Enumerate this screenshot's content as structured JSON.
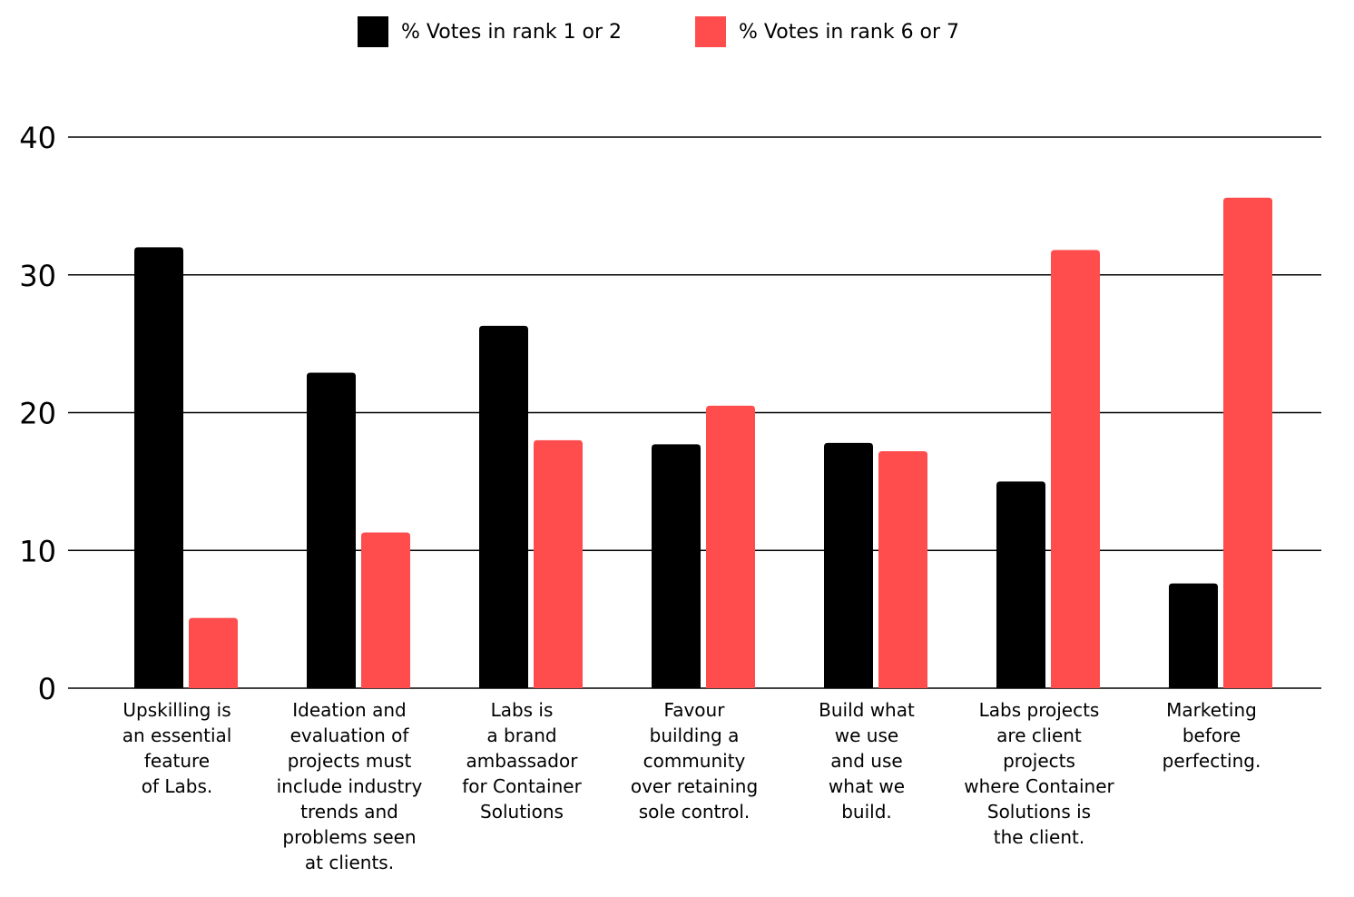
{
  "chart_data": {
    "type": "bar",
    "title": "",
    "xlabel": "",
    "ylabel": "",
    "ylim": [
      0,
      40
    ],
    "yticks": [
      "0",
      "10",
      "20",
      "30",
      "40"
    ],
    "grid": true,
    "legend_position": "top-center",
    "categories": [
      "Upskilling is\nan essential\nfeature\nof Labs.",
      "Ideation and\nevaluation of\nprojects must\ninclude industry\ntrends and\nproblems seen\nat clients.",
      "Labs is\na brand\nambassador\nfor Container\nSolutions",
      "Favour\nbuilding a\ncommunity\nover retaining\nsole control.",
      "Build what\nwe use\nand use\nwhat we\nbuild.",
      "Labs projects\nare client\nprojects\nwhere Container\nSolutions is\nthe client.",
      "Marketing\nbefore\nperfecting."
    ],
    "series": [
      {
        "name": "% Votes in rank 1 or 2",
        "color": "#000000",
        "values": [
          32.0,
          22.9,
          26.3,
          17.7,
          17.8,
          15.0,
          7.6
        ]
      },
      {
        "name": "% Votes in rank 6 or 7",
        "color": "#ff4c4c",
        "values": [
          5.1,
          11.3,
          18.0,
          20.5,
          17.2,
          31.8,
          35.6
        ]
      }
    ]
  }
}
